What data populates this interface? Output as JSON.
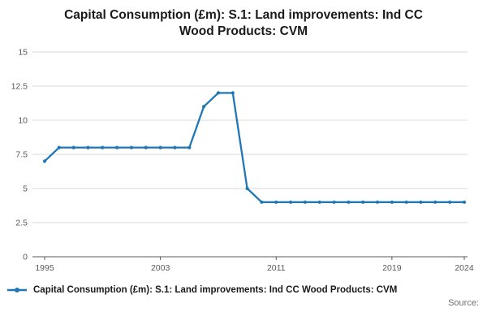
{
  "title": "Capital Consumption (£m): S.1: Land improvements: Ind CC Wood Products: CVM",
  "title_lines": [
    "Capital Consumption (£m): S.1: Land improvements: Ind CC",
    "Wood Products: CVM"
  ],
  "legend": {
    "label": "Capital Consumption (£m): S.1: Land improvements: Ind CC Wood Products: CVM"
  },
  "footer": {
    "source": "Source:"
  },
  "colors": {
    "line": "#1f77b4",
    "grid": "#d9d9d9",
    "axis": "#595959",
    "tick_text": "#595959"
  },
  "chart_data": {
    "type": "line",
    "title": "Capital Consumption (£m): S.1: Land improvements: Ind CC Wood Products: CVM",
    "xlabel": "",
    "ylabel": "",
    "x": [
      1995,
      1996,
      1997,
      1998,
      1999,
      2000,
      2001,
      2002,
      2003,
      2004,
      2005,
      2006,
      2007,
      2008,
      2009,
      2010,
      2011,
      2012,
      2013,
      2014,
      2015,
      2016,
      2017,
      2018,
      2019,
      2020,
      2021,
      2022,
      2023,
      2024
    ],
    "values": [
      7,
      8,
      8,
      8,
      8,
      8,
      8,
      8,
      8,
      8,
      8,
      11,
      12,
      12,
      5,
      4,
      4,
      4,
      4,
      4,
      4,
      4,
      4,
      4,
      4,
      4,
      4,
      4,
      4,
      4
    ],
    "series_name": "Capital Consumption (£m): S.1: Land improvements: Ind CC Wood Products: CVM",
    "ylim": [
      0,
      15
    ],
    "yticks": [
      0,
      2.5,
      5,
      7.5,
      10,
      12.5,
      15
    ],
    "xticks": [
      1995,
      2003,
      2011,
      2019,
      2024
    ],
    "grid": true,
    "marker": "circle",
    "legend_position": "bottom-left"
  }
}
